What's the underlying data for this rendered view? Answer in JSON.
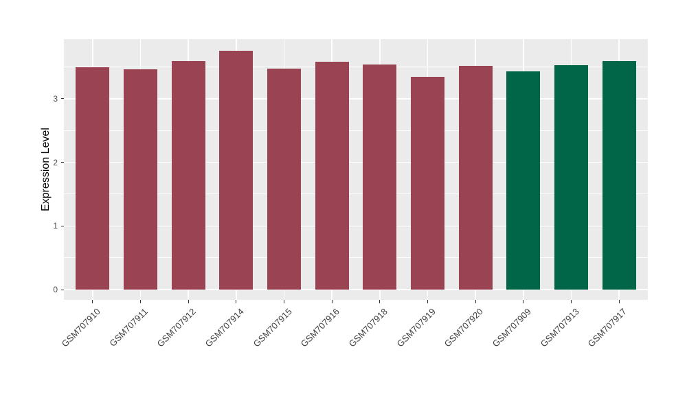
{
  "page": {
    "background_color": "#FFFFFF"
  },
  "chart_data": {
    "type": "bar",
    "title": "",
    "xlabel": "",
    "ylabel": "Expression Level",
    "categories": [
      "GSM707910",
      "GSM707911",
      "GSM707912",
      "GSM707914",
      "GSM707915",
      "GSM707916",
      "GSM707918",
      "GSM707919",
      "GSM707920",
      "GSM707909",
      "GSM707913",
      "GSM707917"
    ],
    "values": [
      3.5,
      3.46,
      3.59,
      3.75,
      3.47,
      3.58,
      3.54,
      3.34,
      3.52,
      3.43,
      3.53,
      3.59
    ],
    "bar_colors": [
      "#9A4353",
      "#9A4353",
      "#9A4353",
      "#9A4353",
      "#9A4353",
      "#9A4353",
      "#9A4353",
      "#9A4353",
      "#9A4353",
      "#006647",
      "#006647",
      "#006647"
    ],
    "group_colors": {
      "maroon_group": "#9A4353",
      "green_group": "#006647"
    },
    "yticks": [
      0,
      1,
      2,
      3
    ],
    "minor_yticks": [
      0.5,
      1.5,
      2.5,
      3.5
    ],
    "ylim": [
      0,
      3.94
    ],
    "bar_width_ratio": 0.7,
    "x_tick_rotation_degrees": 45,
    "grid": "on",
    "legend": "none",
    "style": {
      "panel_background": "#EBEBEB",
      "gridline_color": "#FFFFFF",
      "tick_mark_color": "#333333",
      "y_tick_label_color": "#4D4D4D",
      "x_tick_label_color": "#404040",
      "axis_title_color": "#000000"
    }
  }
}
